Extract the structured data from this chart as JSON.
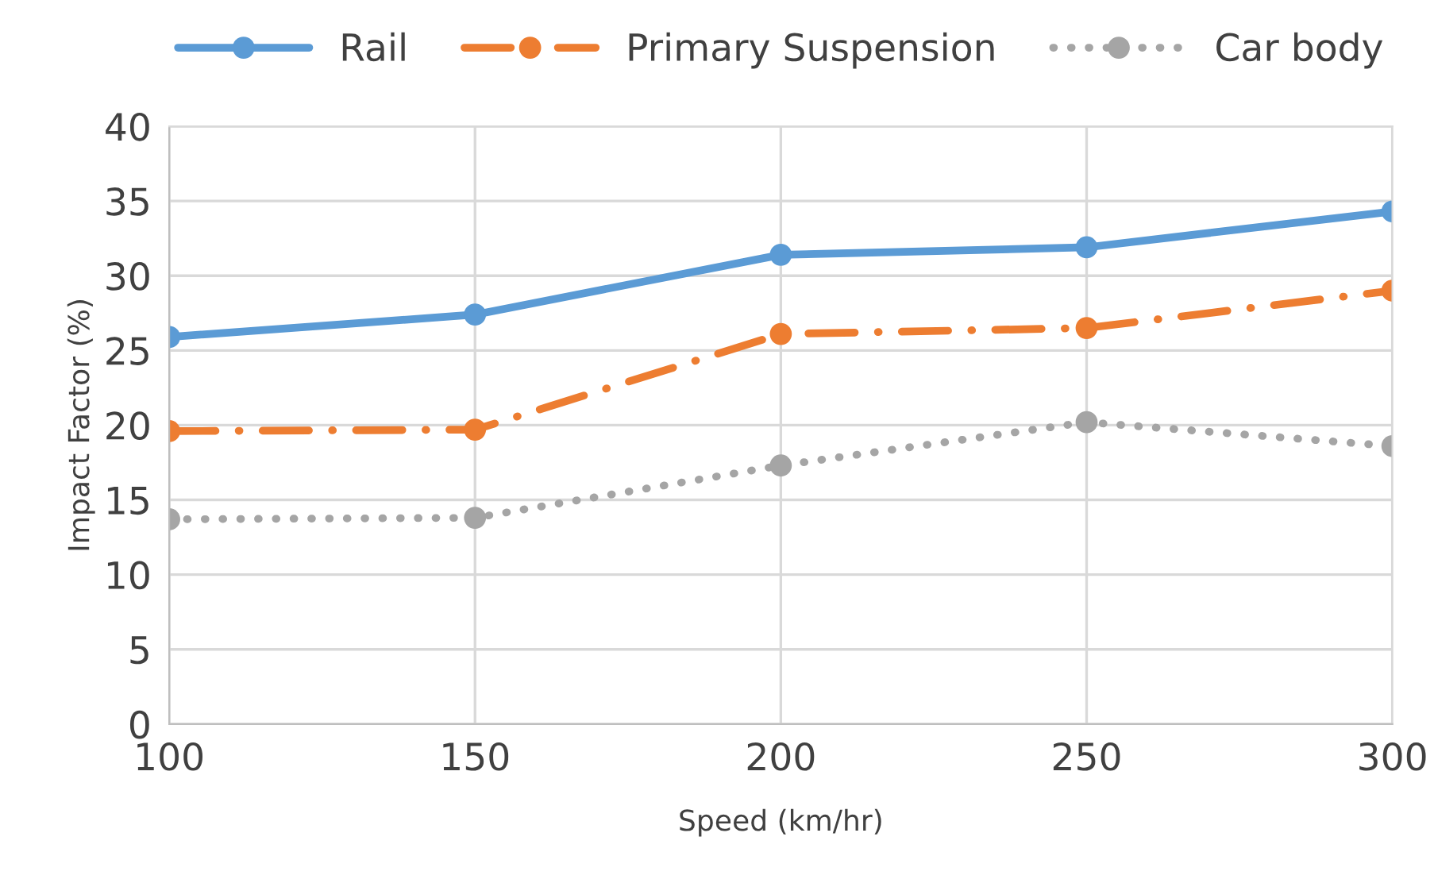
{
  "chart_data": {
    "type": "line",
    "xlabel": "Speed (km/hr)",
    "ylabel": "Impact Factor (%)",
    "x": [
      100,
      150,
      200,
      250,
      300
    ],
    "series": [
      {
        "name": "Rail",
        "color": "#5b9bd5",
        "values": [
          25.9,
          27.4,
          31.4,
          31.9,
          34.3
        ],
        "line_style": "solid"
      },
      {
        "name": "Primary Suspension",
        "color": "#ed7d31",
        "values": [
          19.6,
          19.7,
          26.1,
          26.5,
          29.0
        ],
        "line_style": "dashdot"
      },
      {
        "name": "Car body",
        "color": "#a5a5a5",
        "values": [
          13.7,
          13.8,
          17.3,
          20.2,
          18.6
        ],
        "line_style": "dotted"
      }
    ],
    "xlim": [
      100,
      300
    ],
    "xticks": [
      100,
      150,
      200,
      250,
      300
    ],
    "ylim": [
      0,
      40
    ],
    "yticks": [
      0,
      5,
      10,
      15,
      20,
      25,
      30,
      35,
      40
    ],
    "grid": true,
    "legend": "top",
    "marker": "circle"
  }
}
